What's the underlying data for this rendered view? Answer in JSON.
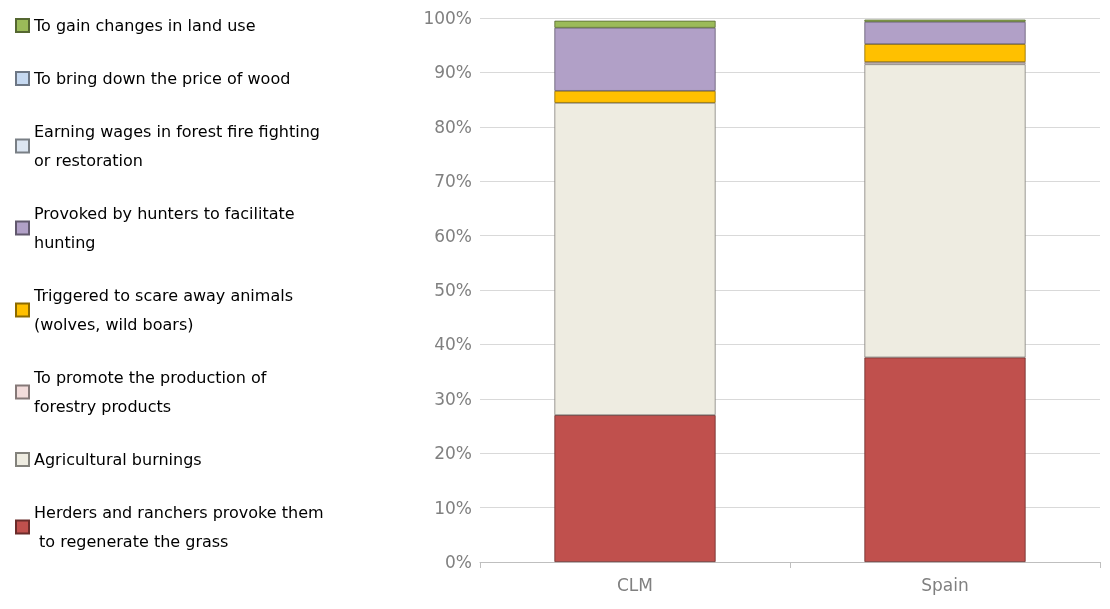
{
  "chart_data": {
    "type": "bar",
    "stacked": true,
    "categories": [
      "CLM",
      "Spain"
    ],
    "series": [
      {
        "name": "Herders and ranchers provoke them to regenerate the grass",
        "color": "#c0504d",
        "values": [
          27.0,
          37.6
        ]
      },
      {
        "name": "Agricultural burnings",
        "color": "#eeece1",
        "values": [
          57.4,
          53.9
        ]
      },
      {
        "name": "To promote the production of forestry products",
        "color": "#f2dcdb",
        "values": [
          null,
          0.4
        ]
      },
      {
        "name": "Triggered to scare away animals (wolves, wild boars)",
        "color": "#ffc000",
        "values": [
          2.2,
          3.3
        ]
      },
      {
        "name": "Provoked by hunters to facilitate hunting",
        "color": "#b1a0c7",
        "values": [
          11.6,
          4.1
        ]
      },
      {
        "name": "Earning wages in forest fire fighting or restoration",
        "color": "#dce6f2",
        "values": [
          null,
          null
        ]
      },
      {
        "name": "To bring down the price of wood",
        "color": "#c6d9f1",
        "values": [
          null,
          null
        ]
      },
      {
        "name": "To gain changes in land use",
        "color": "#9bbb59",
        "values": [
          1.3,
          0.4
        ]
      }
    ],
    "ylim": [
      0,
      100
    ],
    "yticks": [
      {
        "value": 0,
        "label": "0%"
      },
      {
        "value": 10,
        "label": "10%"
      },
      {
        "value": 20,
        "label": "20%"
      },
      {
        "value": 30,
        "label": "30%"
      },
      {
        "value": 40,
        "label": "40%"
      },
      {
        "value": 50,
        "label": "50%"
      },
      {
        "value": 60,
        "label": "60%"
      },
      {
        "value": 70,
        "label": "70%"
      },
      {
        "value": 80,
        "label": "80%"
      },
      {
        "value": 90,
        "label": "90%"
      },
      {
        "value": 100,
        "label": "100%"
      }
    ],
    "grid": "y",
    "legend": "left"
  }
}
